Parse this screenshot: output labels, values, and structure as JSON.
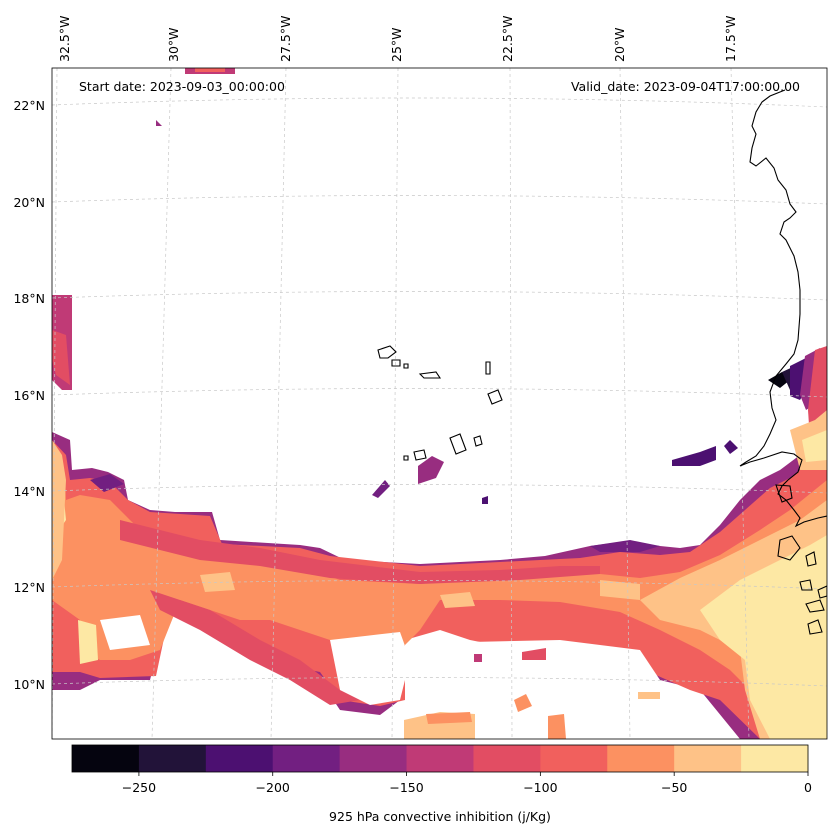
{
  "annotations": {
    "start_date": "Start date: 2023-09-03_00:00:00",
    "valid_date": "Valid_date: 2023-09-04T17:00:00.00"
  },
  "lon_labels": [
    "32.5°W",
    "30°W",
    "27.5°W",
    "25°W",
    "22.5°W",
    "20°W",
    "17.5°W"
  ],
  "lat_labels": [
    "22°N",
    "20°N",
    "18°N",
    "16°N",
    "14°N",
    "12°N",
    "10°N"
  ],
  "colorbar": {
    "label": "925 hPa convective inhibition (j/Kg)",
    "levels": [
      -275,
      -250,
      -225,
      -200,
      -175,
      -150,
      -125,
      -100,
      -75,
      -50,
      -25,
      0
    ],
    "tick_values": [
      -250,
      -200,
      -150,
      -100,
      -50,
      0
    ],
    "tick_labels": [
      "−250",
      "−200",
      "−150",
      "−100",
      "−50",
      "0"
    ],
    "colors": [
      "#05040f",
      "#221339",
      "#4c1071",
      "#721f81",
      "#982d80",
      "#c03a76",
      "#e24d63",
      "#f1605d",
      "#fc9161",
      "#fec287",
      "#fde8a4"
    ]
  },
  "map_extent": {
    "lon": [
      -33,
      -15
    ],
    "lat": [
      9,
      22.8
    ]
  }
}
